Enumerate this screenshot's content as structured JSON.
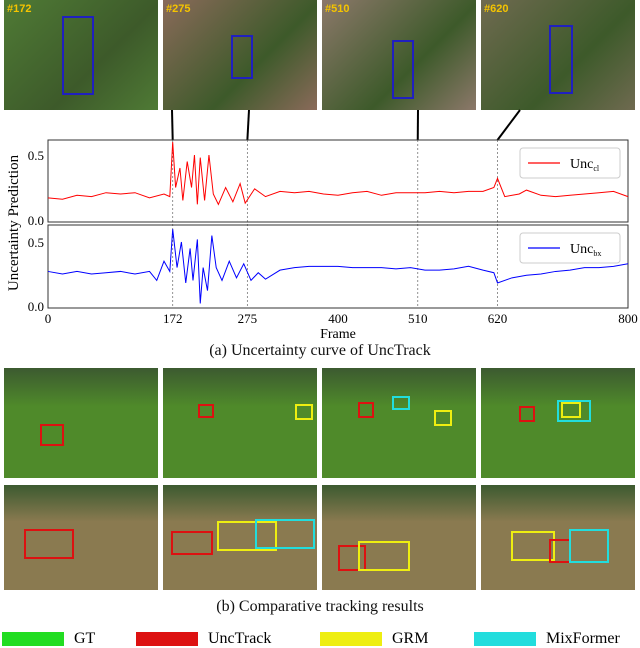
{
  "top_frames": [
    {
      "label": "#172",
      "bg": "#4f7a35"
    },
    {
      "label": "#275",
      "bg": "#8a6a5a"
    },
    {
      "label": "#510",
      "bg": "#8c786a"
    },
    {
      "label": "#620",
      "bg": "#6f6a50"
    }
  ],
  "chart_data": {
    "type": "line",
    "xlabel": "Frame",
    "ylabel": "Uncertainty Prediction",
    "xlim": [
      0,
      800
    ],
    "ylim": [
      0,
      0.6
    ],
    "xticks": [
      "0",
      "172",
      "275",
      "400",
      "510",
      "620",
      "800"
    ],
    "yticks": [
      "0.0",
      "0.5"
    ],
    "marked_frames": [
      172,
      275,
      510,
      620
    ],
    "grid": false,
    "legend_placement": "top-right",
    "series": [
      {
        "name": "Unc",
        "sub": "cl",
        "color": "#ff0000",
        "points": [
          [
            0,
            0.17
          ],
          [
            20,
            0.16
          ],
          [
            40,
            0.19
          ],
          [
            60,
            0.18
          ],
          [
            80,
            0.21
          ],
          [
            100,
            0.2
          ],
          [
            120,
            0.21
          ],
          [
            140,
            0.17
          ],
          [
            160,
            0.2
          ],
          [
            168,
            0.18
          ],
          [
            172,
            0.6
          ],
          [
            176,
            0.25
          ],
          [
            182,
            0.4
          ],
          [
            186,
            0.15
          ],
          [
            192,
            0.45
          ],
          [
            198,
            0.25
          ],
          [
            202,
            0.5
          ],
          [
            206,
            0.12
          ],
          [
            210,
            0.48
          ],
          [
            216,
            0.15
          ],
          [
            222,
            0.5
          ],
          [
            228,
            0.2
          ],
          [
            235,
            0.12
          ],
          [
            245,
            0.25
          ],
          [
            255,
            0.14
          ],
          [
            265,
            0.28
          ],
          [
            272,
            0.13
          ],
          [
            285,
            0.24
          ],
          [
            300,
            0.18
          ],
          [
            320,
            0.22
          ],
          [
            340,
            0.21
          ],
          [
            360,
            0.22
          ],
          [
            380,
            0.2
          ],
          [
            400,
            0.19
          ],
          [
            420,
            0.21
          ],
          [
            440,
            0.22
          ],
          [
            460,
            0.19
          ],
          [
            480,
            0.21
          ],
          [
            500,
            0.21
          ],
          [
            520,
            0.21
          ],
          [
            540,
            0.22
          ],
          [
            560,
            0.21
          ],
          [
            580,
            0.22
          ],
          [
            600,
            0.22
          ],
          [
            615,
            0.25
          ],
          [
            620,
            0.32
          ],
          [
            630,
            0.18
          ],
          [
            650,
            0.2
          ],
          [
            660,
            0.23
          ],
          [
            680,
            0.19
          ],
          [
            700,
            0.18
          ],
          [
            720,
            0.19
          ],
          [
            740,
            0.2
          ],
          [
            760,
            0.21
          ],
          [
            780,
            0.22
          ],
          [
            800,
            0.18
          ]
        ]
      },
      {
        "name": "Unc",
        "sub": "bx",
        "color": "#0000ff",
        "points": [
          [
            0,
            0.27
          ],
          [
            20,
            0.25
          ],
          [
            40,
            0.27
          ],
          [
            60,
            0.25
          ],
          [
            80,
            0.26
          ],
          [
            100,
            0.27
          ],
          [
            120,
            0.25
          ],
          [
            140,
            0.27
          ],
          [
            150,
            0.2
          ],
          [
            160,
            0.35
          ],
          [
            168,
            0.27
          ],
          [
            172,
            0.6
          ],
          [
            178,
            0.3
          ],
          [
            184,
            0.5
          ],
          [
            190,
            0.18
          ],
          [
            196,
            0.45
          ],
          [
            200,
            0.2
          ],
          [
            206,
            0.52
          ],
          [
            210,
            0.02
          ],
          [
            214,
            0.3
          ],
          [
            220,
            0.12
          ],
          [
            226,
            0.55
          ],
          [
            232,
            0.3
          ],
          [
            240,
            0.2
          ],
          [
            250,
            0.35
          ],
          [
            260,
            0.22
          ],
          [
            270,
            0.33
          ],
          [
            280,
            0.2
          ],
          [
            290,
            0.26
          ],
          [
            300,
            0.21
          ],
          [
            320,
            0.28
          ],
          [
            340,
            0.3
          ],
          [
            360,
            0.31
          ],
          [
            380,
            0.31
          ],
          [
            400,
            0.31
          ],
          [
            420,
            0.3
          ],
          [
            440,
            0.3
          ],
          [
            460,
            0.3
          ],
          [
            480,
            0.29
          ],
          [
            500,
            0.3
          ],
          [
            520,
            0.28
          ],
          [
            540,
            0.28
          ],
          [
            560,
            0.29
          ],
          [
            580,
            0.31
          ],
          [
            600,
            0.28
          ],
          [
            615,
            0.26
          ],
          [
            620,
            0.18
          ],
          [
            640,
            0.22
          ],
          [
            660,
            0.24
          ],
          [
            680,
            0.25
          ],
          [
            700,
            0.27
          ],
          [
            720,
            0.28
          ],
          [
            740,
            0.3
          ],
          [
            760,
            0.3
          ],
          [
            780,
            0.31
          ],
          [
            800,
            0.33
          ]
        ]
      }
    ]
  },
  "caption_a": "(a) Uncertainty curve of UncTrack",
  "caption_b": "(b) Comparative tracking results",
  "legend": [
    {
      "label": "GT",
      "color": "#22dd22"
    },
    {
      "label": "UncTrack",
      "color": "#dd1111"
    },
    {
      "label": "GRM",
      "color": "#eeee11"
    },
    {
      "label": "MixFormer",
      "color": "#22dddd"
    }
  ],
  "sheep_bg": "#4f8a2a",
  "zebra_bg": "#8a7a50"
}
